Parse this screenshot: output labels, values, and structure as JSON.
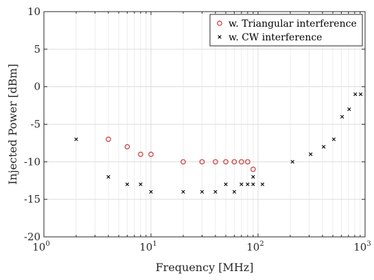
{
  "chart_data": {
    "type": "scatter",
    "title": "",
    "xlabel": "Frequency [MHz]",
    "ylabel": "Injected Power [dBm]",
    "xscale": "log",
    "xlim": [
      1,
      1000
    ],
    "ylim": [
      -20,
      10
    ],
    "x_ticks": [
      {
        "value": 1,
        "base": "10",
        "exp": "0"
      },
      {
        "value": 10,
        "base": "10",
        "exp": "1"
      },
      {
        "value": 100,
        "base": "10",
        "exp": "2"
      },
      {
        "value": 1000,
        "base": "10",
        "exp": "3"
      }
    ],
    "y_ticks": [
      {
        "value": 10,
        "label": "10"
      },
      {
        "value": 5,
        "label": "5"
      },
      {
        "value": 0,
        "label": "0"
      },
      {
        "value": -5,
        "label": "-5"
      },
      {
        "value": -10,
        "label": "-10"
      },
      {
        "value": -15,
        "label": "-15"
      },
      {
        "value": -20,
        "label": "-20"
      }
    ],
    "grid": true,
    "legend_position": "top-right",
    "series": [
      {
        "name": "w. Triangular interference",
        "marker": "circle",
        "color": "#e02020",
        "x": [
          4,
          6,
          8,
          10,
          20,
          30,
          40,
          50,
          60,
          70,
          80,
          90
        ],
        "y": [
          -7,
          -8,
          -9,
          -9,
          -10,
          -10,
          -10,
          -10,
          -10,
          -10,
          -10,
          -11
        ]
      },
      {
        "name": "w. CW interference",
        "marker": "x",
        "color": "#000000",
        "x": [
          2,
          4,
          6,
          8,
          10,
          20,
          30,
          40,
          50,
          60,
          70,
          80,
          90,
          90,
          110,
          210,
          310,
          410,
          510,
          610,
          710,
          810,
          910
        ],
        "y": [
          -7,
          -12,
          -13,
          -13,
          -14,
          -14,
          -14,
          -14,
          -13,
          -14,
          -13,
          -13,
          -13,
          -12,
          -13,
          -10,
          -9,
          -8,
          -7,
          -4,
          -3,
          -1,
          -1
        ]
      }
    ]
  }
}
